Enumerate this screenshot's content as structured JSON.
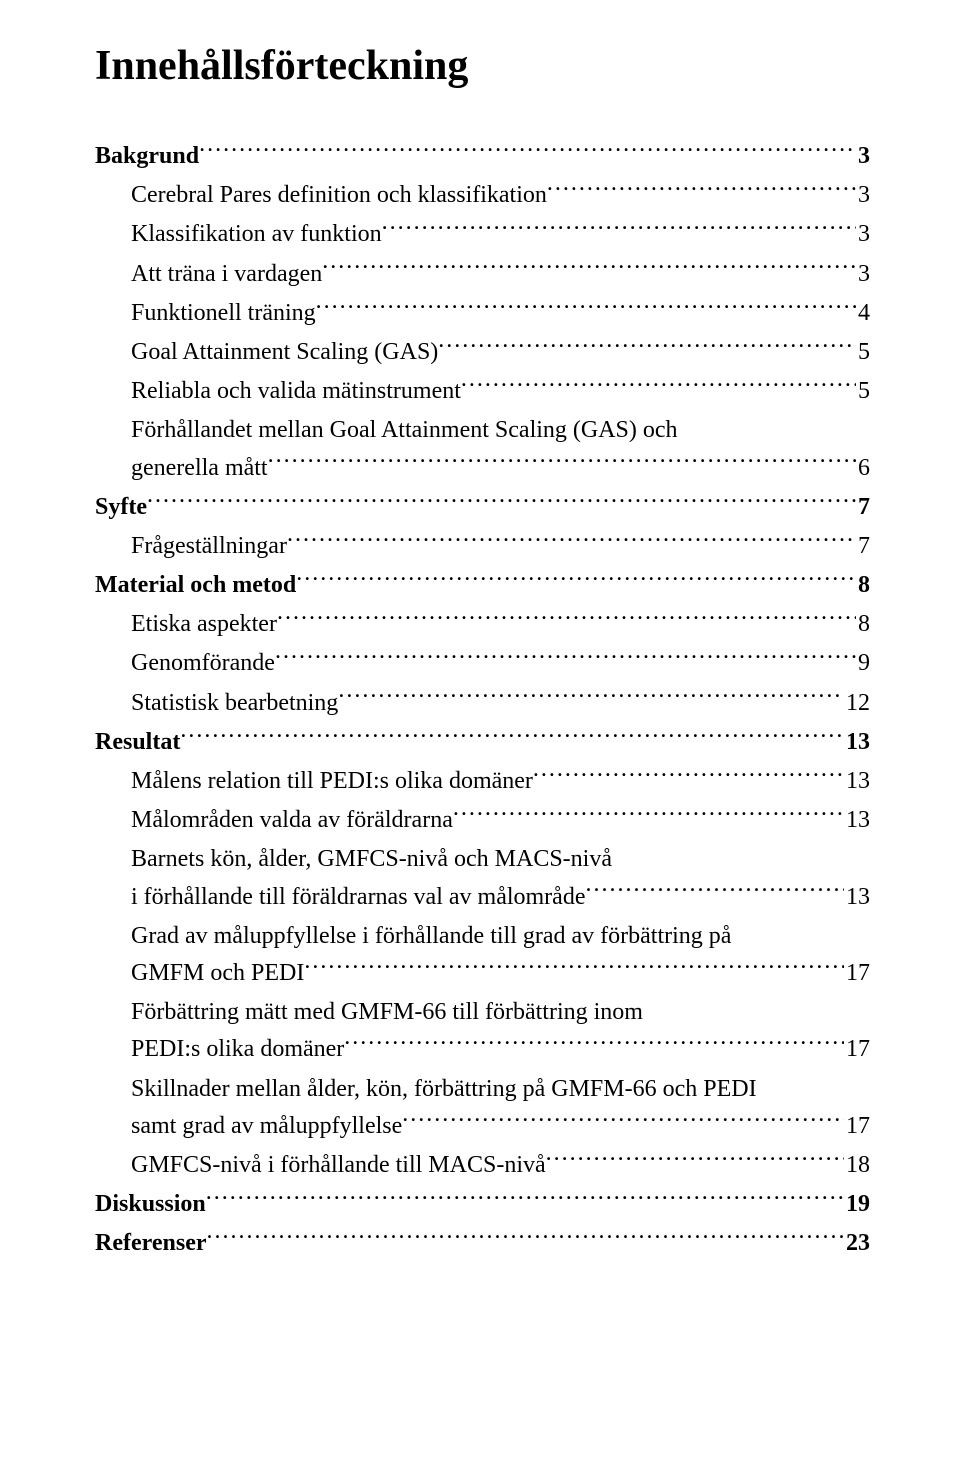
{
  "title": "Innehållsförteckning",
  "font": {
    "family": "Times New Roman",
    "title_size_pt": 32,
    "body_size_pt": 18
  },
  "colors": {
    "text": "#000000",
    "background": "#ffffff"
  },
  "entries": [
    {
      "label": "Bakgrund",
      "page": "3",
      "level": 0,
      "bold": true
    },
    {
      "label": "Cerebral Pares definition och klassifikation",
      "page": "3",
      "level": 1,
      "bold": false
    },
    {
      "label": "Klassifikation av funktion",
      "page": "3",
      "level": 1,
      "bold": false
    },
    {
      "label": "Att träna i vardagen",
      "page": "3",
      "level": 1,
      "bold": false
    },
    {
      "label": "Funktionell träning",
      "page": "4",
      "level": 1,
      "bold": false
    },
    {
      "label": "Goal Attainment Scaling (GAS)",
      "page": "5",
      "level": 1,
      "bold": false
    },
    {
      "label": "Reliabla och valida mätinstrument",
      "page": "5",
      "level": 1,
      "bold": false
    },
    {
      "label": "Förhållandet mellan Goal Attainment Scaling (GAS) och",
      "cont": true,
      "level": 1,
      "bold": false
    },
    {
      "label": "generella mått",
      "page": "6",
      "level": 1,
      "bold": false
    },
    {
      "label": "Syfte",
      "page": "7",
      "level": 0,
      "bold": true
    },
    {
      "label": "Frågeställningar",
      "page": "7",
      "level": 1,
      "bold": false
    },
    {
      "label": "Material och metod",
      "page": "8",
      "level": 0,
      "bold": true
    },
    {
      "label": "Etiska aspekter",
      "page": "8",
      "level": 1,
      "bold": false
    },
    {
      "label": "Genomförande",
      "page": "9",
      "level": 1,
      "bold": false
    },
    {
      "label": "Statistisk bearbetning",
      "page": "12",
      "level": 1,
      "bold": false
    },
    {
      "label": "Resultat",
      "page": "13",
      "level": 0,
      "bold": true
    },
    {
      "label": "Målens relation till PEDI:s olika domäner",
      "page": "13",
      "level": 1,
      "bold": false
    },
    {
      "label": "Målområden valda av föräldrarna",
      "page": "13",
      "level": 1,
      "bold": false
    },
    {
      "label": "Barnets kön, ålder, GMFCS-nivå och MACS-nivå",
      "cont": true,
      "level": 1,
      "bold": false
    },
    {
      "label": "i förhållande till föräldrarnas val av målområde",
      "page": "13",
      "level": 1,
      "bold": false
    },
    {
      "label": "Grad av måluppfyllelse i förhållande till grad av förbättring på",
      "cont": true,
      "level": 1,
      "bold": false
    },
    {
      "label": "GMFM och PEDI",
      "page": "17",
      "level": 1,
      "bold": false
    },
    {
      "label": "Förbättring mätt med GMFM-66 till förbättring inom",
      "cont": true,
      "level": 1,
      "bold": false
    },
    {
      "label": "PEDI:s olika domäner",
      "page": "17",
      "level": 1,
      "bold": false
    },
    {
      "label": "Skillnader mellan ålder, kön, förbättring på GMFM-66 och PEDI",
      "cont": true,
      "level": 1,
      "bold": false
    },
    {
      "label": "samt grad av måluppfyllelse",
      "page": "17",
      "level": 1,
      "bold": false
    },
    {
      "label": "GMFCS-nivå i förhållande till MACS-nivå",
      "page": "18",
      "level": 1,
      "bold": false
    },
    {
      "label": "Diskussion",
      "page": "19",
      "level": 0,
      "bold": true
    },
    {
      "label": "Referenser",
      "page": "23",
      "level": 0,
      "bold": true
    }
  ]
}
